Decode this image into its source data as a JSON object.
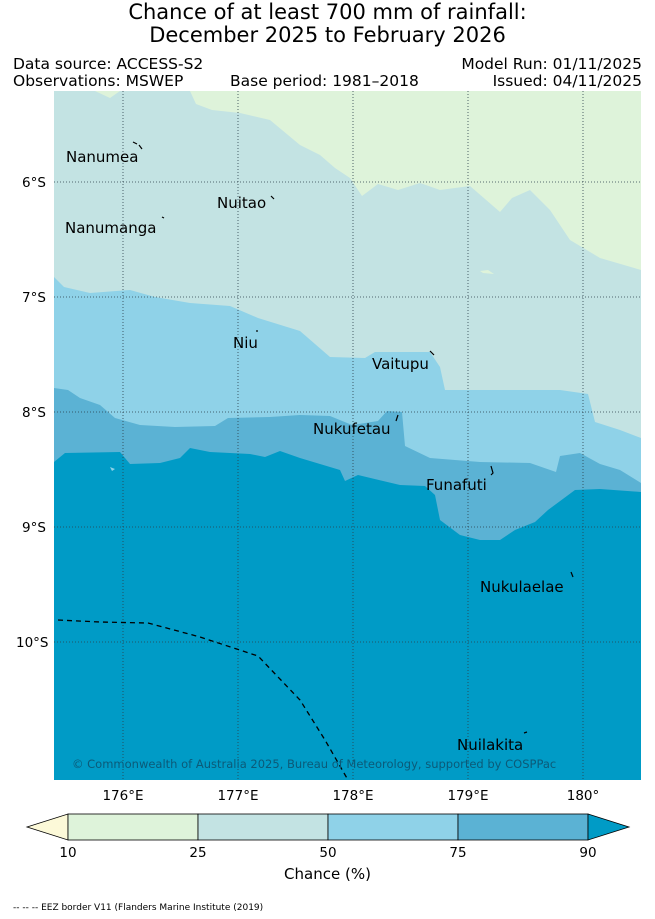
{
  "title_line1": "Chance of at least 700 mm of rainfall:",
  "title_line2": "December 2025 to February 2026",
  "data_source": "Data source: ACCESS-S2",
  "observations": "Observations: MSWEP",
  "base_period": "Base period: 1981–2018",
  "model_run": "Model Run: 01/11/2025",
  "issued": "Issued: 04/11/2025",
  "lat_labels": [
    "6°S",
    "7°S",
    "8°S",
    "9°S",
    "10°S"
  ],
  "lon_labels": [
    "176°E",
    "177°E",
    "178°E",
    "179°E",
    "180°"
  ],
  "places": [
    "Nanumea",
    "Nuitao",
    "Nanumanga",
    "Niu",
    "Vaitupu",
    "Nukufetau",
    "Funafuti",
    "Nukulaelae",
    "Nuilakita"
  ],
  "copyright": "© Commonwealth of Australia 2025, Bureau of Meteorology, supported by COSPPac",
  "colorbar": {
    "ticks": [
      "10",
      "25",
      "50",
      "75",
      "90"
    ],
    "title": "Chance (%)",
    "colors": [
      "#fcf9d8",
      "#def3da",
      "#c3e3e3",
      "#8fd2e8",
      "#5bb2d4",
      "#009bc6"
    ]
  },
  "footnote": "-- -- -- EEZ border V11 (Flanders Marine Institute (2019)",
  "colors": {
    "band_10_25": "#def3da",
    "band_25_50": "#c3e3e3",
    "band_50_75": "#8fd2e8",
    "band_75_90": "#5bb2d4",
    "band_90_plus": "#009bc6"
  }
}
